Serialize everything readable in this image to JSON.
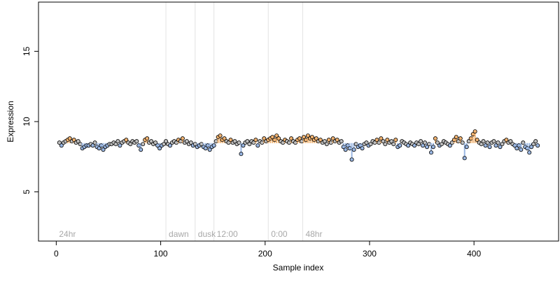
{
  "chart_data": {
    "type": "scatter",
    "title": "",
    "xlabel": "Sample index",
    "ylabel": "Expression",
    "xlim": [
      -17,
      481
    ],
    "ylim": [
      1.5,
      18.5
    ],
    "x_ticks": [
      0,
      100,
      200,
      300,
      400
    ],
    "y_ticks": [
      5,
      10,
      15
    ],
    "phase_markers": [
      {
        "x": 0,
        "label": "24hr",
        "line": false
      },
      {
        "x": 105,
        "label": "dawn",
        "line": true
      },
      {
        "x": 133,
        "label": "dusk",
        "line": true
      },
      {
        "x": 151,
        "label": "12:00",
        "line": true
      },
      {
        "x": 203,
        "label": "0:00",
        "line": true
      },
      {
        "x": 236,
        "label": "48hr",
        "line": true
      }
    ],
    "phase_label_y": 2.0,
    "series": [
      {
        "points": [
          [
            3,
            8.5
          ],
          [
            5,
            8.3
          ],
          [
            7,
            8.5
          ],
          [
            9,
            8.6
          ],
          [
            11,
            8.7
          ],
          [
            13,
            8.8
          ],
          [
            15,
            8.6
          ],
          [
            17,
            8.7
          ],
          [
            19,
            8.5
          ],
          [
            21,
            8.6
          ],
          [
            23,
            8.4
          ],
          [
            25,
            8.1
          ],
          [
            27,
            8.2
          ],
          [
            29,
            8.3
          ],
          [
            31,
            8.3
          ],
          [
            33,
            8.4
          ],
          [
            35,
            8.3
          ],
          [
            37,
            8.5
          ],
          [
            39,
            8.2
          ],
          [
            41,
            8.1
          ],
          [
            43,
            8.3
          ],
          [
            45,
            8.0
          ],
          [
            47,
            8.2
          ],
          [
            49,
            8.3
          ],
          [
            51,
            8.4
          ],
          [
            53,
            8.4
          ],
          [
            55,
            8.5
          ],
          [
            57,
            8.4
          ],
          [
            59,
            8.6
          ],
          [
            61,
            8.3
          ],
          [
            63,
            8.5
          ],
          [
            65,
            8.6
          ],
          [
            67,
            8.7
          ],
          [
            69,
            8.5
          ],
          [
            71,
            8.4
          ],
          [
            73,
            8.6
          ],
          [
            75,
            8.5
          ],
          [
            77,
            8.6
          ],
          [
            79,
            8.3
          ],
          [
            81,
            8.0
          ],
          [
            83,
            8.4
          ],
          [
            85,
            8.7
          ],
          [
            87,
            8.8
          ],
          [
            89,
            8.5
          ],
          [
            91,
            8.6
          ],
          [
            93,
            8.4
          ],
          [
            95,
            8.5
          ],
          [
            97,
            8.3
          ],
          [
            99,
            8.1
          ],
          [
            101,
            8.3
          ],
          [
            103,
            8.4
          ],
          [
            105,
            8.6
          ],
          [
            107,
            8.4
          ],
          [
            109,
            8.3
          ],
          [
            111,
            8.5
          ],
          [
            113,
            8.6
          ],
          [
            115,
            8.5
          ],
          [
            117,
            8.7
          ],
          [
            119,
            8.6
          ],
          [
            121,
            8.8
          ],
          [
            123,
            8.5
          ],
          [
            125,
            8.6
          ],
          [
            127,
            8.4
          ],
          [
            129,
            8.5
          ],
          [
            131,
            8.3
          ],
          [
            133,
            8.4
          ],
          [
            135,
            8.2
          ],
          [
            137,
            8.3
          ],
          [
            139,
            8.4
          ],
          [
            141,
            8.2
          ],
          [
            143,
            8.1
          ],
          [
            145,
            8.3
          ],
          [
            147,
            8.0
          ],
          [
            149,
            8.2
          ],
          [
            151,
            8.3
          ],
          [
            153,
            8.6
          ],
          [
            155,
            8.9
          ],
          [
            157,
            9.0
          ],
          [
            159,
            8.7
          ],
          [
            161,
            8.8
          ],
          [
            163,
            8.6
          ],
          [
            165,
            8.5
          ],
          [
            167,
            8.7
          ],
          [
            169,
            8.5
          ],
          [
            171,
            8.6
          ],
          [
            173,
            8.4
          ],
          [
            175,
            8.5
          ],
          [
            177,
            7.7
          ],
          [
            179,
            8.3
          ],
          [
            181,
            8.5
          ],
          [
            183,
            8.6
          ],
          [
            185,
            8.4
          ],
          [
            187,
            8.6
          ],
          [
            189,
            8.5
          ],
          [
            191,
            8.7
          ],
          [
            193,
            8.3
          ],
          [
            195,
            8.6
          ],
          [
            197,
            8.5
          ],
          [
            199,
            8.8
          ],
          [
            201,
            8.6
          ],
          [
            203,
            8.7
          ],
          [
            205,
            8.8
          ],
          [
            207,
            8.9
          ],
          [
            209,
            8.7
          ],
          [
            211,
            9.0
          ],
          [
            213,
            8.8
          ],
          [
            215,
            8.6
          ],
          [
            217,
            8.5
          ],
          [
            219,
            8.7
          ],
          [
            221,
            8.6
          ],
          [
            223,
            8.5
          ],
          [
            225,
            8.8
          ],
          [
            227,
            8.6
          ],
          [
            229,
            8.5
          ],
          [
            231,
            8.7
          ],
          [
            233,
            8.8
          ],
          [
            235,
            8.6
          ],
          [
            237,
            8.9
          ],
          [
            239,
            8.7
          ],
          [
            241,
            9.0
          ],
          [
            243,
            8.8
          ],
          [
            245,
            8.9
          ],
          [
            247,
            8.7
          ],
          [
            249,
            8.8
          ],
          [
            251,
            8.6
          ],
          [
            253,
            8.7
          ],
          [
            255,
            8.5
          ],
          [
            257,
            8.6
          ],
          [
            259,
            8.4
          ],
          [
            261,
            8.7
          ],
          [
            263,
            8.5
          ],
          [
            265,
            8.8
          ],
          [
            267,
            8.6
          ],
          [
            269,
            8.7
          ],
          [
            271,
            8.5
          ],
          [
            273,
            8.6
          ],
          [
            275,
            8.2
          ],
          [
            277,
            8.0
          ],
          [
            279,
            8.3
          ],
          [
            281,
            8.1
          ],
          [
            283,
            7.3
          ],
          [
            285,
            8.0
          ],
          [
            287,
            8.4
          ],
          [
            289,
            8.2
          ],
          [
            291,
            8.3
          ],
          [
            293,
            8.1
          ],
          [
            295,
            8.4
          ],
          [
            297,
            8.5
          ],
          [
            299,
            8.3
          ],
          [
            301,
            8.4
          ],
          [
            303,
            8.6
          ],
          [
            305,
            8.5
          ],
          [
            307,
            8.7
          ],
          [
            309,
            8.5
          ],
          [
            311,
            8.8
          ],
          [
            313,
            8.6
          ],
          [
            315,
            8.4
          ],
          [
            317,
            8.7
          ],
          [
            319,
            8.5
          ],
          [
            321,
            8.6
          ],
          [
            323,
            8.4
          ],
          [
            325,
            8.7
          ],
          [
            327,
            8.2
          ],
          [
            329,
            8.3
          ],
          [
            331,
            8.6
          ],
          [
            333,
            8.5
          ],
          [
            335,
            8.4
          ],
          [
            337,
            8.3
          ],
          [
            339,
            8.5
          ],
          [
            341,
            8.4
          ],
          [
            343,
            8.3
          ],
          [
            345,
            8.5
          ],
          [
            347,
            8.4
          ],
          [
            349,
            8.6
          ],
          [
            351,
            8.3
          ],
          [
            353,
            8.5
          ],
          [
            355,
            8.2
          ],
          [
            357,
            8.4
          ],
          [
            359,
            7.8
          ],
          [
            361,
            8.2
          ],
          [
            363,
            8.8
          ],
          [
            365,
            8.5
          ],
          [
            367,
            8.3
          ],
          [
            369,
            8.4
          ],
          [
            371,
            8.6
          ],
          [
            373,
            8.5
          ],
          [
            375,
            8.4
          ],
          [
            377,
            8.3
          ],
          [
            379,
            8.5
          ],
          [
            381,
            8.7
          ],
          [
            383,
            8.9
          ],
          [
            385,
            8.6
          ],
          [
            387,
            8.8
          ],
          [
            389,
            8.5
          ],
          [
            391,
            7.4
          ],
          [
            393,
            8.2
          ],
          [
            395,
            8.6
          ],
          [
            397,
            8.8
          ],
          [
            399,
            9.1
          ],
          [
            401,
            9.3
          ],
          [
            403,
            8.7
          ],
          [
            405,
            8.5
          ],
          [
            407,
            8.4
          ],
          [
            409,
            8.6
          ],
          [
            411,
            8.3
          ],
          [
            413,
            8.5
          ],
          [
            415,
            8.2
          ],
          [
            417,
            8.5
          ],
          [
            419,
            8.6
          ],
          [
            421,
            8.3
          ],
          [
            423,
            8.5
          ],
          [
            425,
            8.2
          ],
          [
            427,
            8.4
          ],
          [
            429,
            8.6
          ],
          [
            431,
            8.7
          ],
          [
            433,
            8.5
          ],
          [
            435,
            8.6
          ],
          [
            437,
            8.4
          ],
          [
            439,
            8.3
          ],
          [
            441,
            8.1
          ],
          [
            443,
            8.3
          ],
          [
            445,
            8.0
          ],
          [
            447,
            8.5
          ],
          [
            449,
            8.2
          ],
          [
            451,
            8.1
          ],
          [
            453,
            7.8
          ],
          [
            455,
            8.2
          ],
          [
            457,
            8.4
          ],
          [
            459,
            8.6
          ],
          [
            461,
            8.3
          ]
        ]
      }
    ],
    "grid": false,
    "legend": "none",
    "colors": {
      "point_stroke": "#000000",
      "point_fill_low": "#9ab7e3",
      "point_fill_high": "#f0b270",
      "point_fill_neutral": "#bdbdbd",
      "phase_line": "#e3e3e3",
      "phase_label": "#a8a8a8",
      "axis": "#000000"
    }
  }
}
